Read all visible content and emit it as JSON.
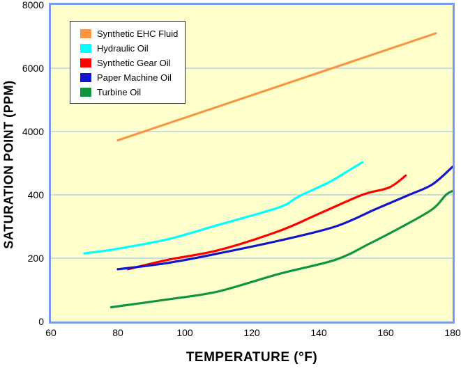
{
  "y_axis": {
    "title": "SATURATION POINT (PPM)",
    "ticks": [
      "8000",
      "6000",
      "4000",
      "400",
      "200",
      "0"
    ]
  },
  "x_axis": {
    "title": "TEMPERATURE (°F)",
    "ticks": [
      "60",
      "80",
      "100",
      "120",
      "140",
      "160",
      "180"
    ]
  },
  "legend": {
    "items": [
      {
        "label": "Synthetic EHC Fluid",
        "color": "#f79646"
      },
      {
        "label": "Hydraulic Oil",
        "color": "#00ffff"
      },
      {
        "label": "Synthetic Gear Oil",
        "color": "#ff0000"
      },
      {
        "label": "Paper Machine Oil",
        "color": "#1414cc"
      },
      {
        "label": "Turbine Oil",
        "color": "#119442"
      }
    ]
  },
  "colors": {
    "plot_background": "#ffffcc",
    "plot_border": "#7a9ce8",
    "gridline": "#a8c7f0",
    "text": "#000000",
    "legend_background": "#ffffff",
    "legend_border": "#2b2b2b"
  },
  "chart_data": {
    "type": "line",
    "title": "",
    "xlabel": "TEMPERATURE (°F)",
    "ylabel": "SATURATION POINT (PPM)",
    "xlim": [
      60,
      180
    ],
    "x_ticks": [
      60,
      80,
      100,
      120,
      140,
      160,
      180
    ],
    "y_ticks": [
      0,
      200,
      400,
      4000,
      6000,
      8000
    ],
    "y_axis_note": "Broken non-linear y-axis: labels 0, 200, 400, 4000, 6000, 8000 are evenly spaced; values are interpolated linearly between adjacent labeled gridlines",
    "grid": "horizontal gridlines at 200, 400, 4000, 6000",
    "legend_position": "top-left inside plot",
    "series": [
      {
        "name": "Synthetic EHC Fluid",
        "color": "#f79646",
        "shape": "straight",
        "points": [
          [
            80,
            3500
          ],
          [
            175,
            7100
          ]
        ]
      },
      {
        "name": "Hydraulic Oil",
        "color": "#00ffff",
        "shape": "curved",
        "points": [
          [
            70,
            215
          ],
          [
            80,
            230
          ],
          [
            95,
            260
          ],
          [
            110,
            305
          ],
          [
            128,
            360
          ],
          [
            134,
            395
          ],
          [
            143,
            1110
          ],
          [
            149,
            1790
          ],
          [
            153,
            2250
          ]
        ]
      },
      {
        "name": "Synthetic Gear Oil",
        "color": "#ff0000",
        "shape": "curved",
        "points": [
          [
            83,
            165
          ],
          [
            95,
            195
          ],
          [
            110,
            225
          ],
          [
            128,
            285
          ],
          [
            140,
            340
          ],
          [
            153,
            400
          ],
          [
            161,
            815
          ],
          [
            166,
            1500
          ]
        ]
      },
      {
        "name": "Paper Machine Oil",
        "color": "#1414cc",
        "shape": "curved",
        "points": [
          [
            80,
            165
          ],
          [
            95,
            185
          ],
          [
            110,
            215
          ],
          [
            128,
            255
          ],
          [
            145,
            300
          ],
          [
            157,
            355
          ],
          [
            167,
            400
          ],
          [
            174,
            1000
          ],
          [
            180,
            2000
          ]
        ]
      },
      {
        "name": "Turbine Oil",
        "color": "#119442",
        "shape": "curved",
        "points": [
          [
            78,
            45
          ],
          [
            95,
            70
          ],
          [
            110,
            95
          ],
          [
            128,
            150
          ],
          [
            145,
            195
          ],
          [
            155,
            245
          ],
          [
            165,
            300
          ],
          [
            174,
            355
          ],
          [
            178,
            400
          ],
          [
            180,
            620
          ]
        ]
      }
    ]
  }
}
